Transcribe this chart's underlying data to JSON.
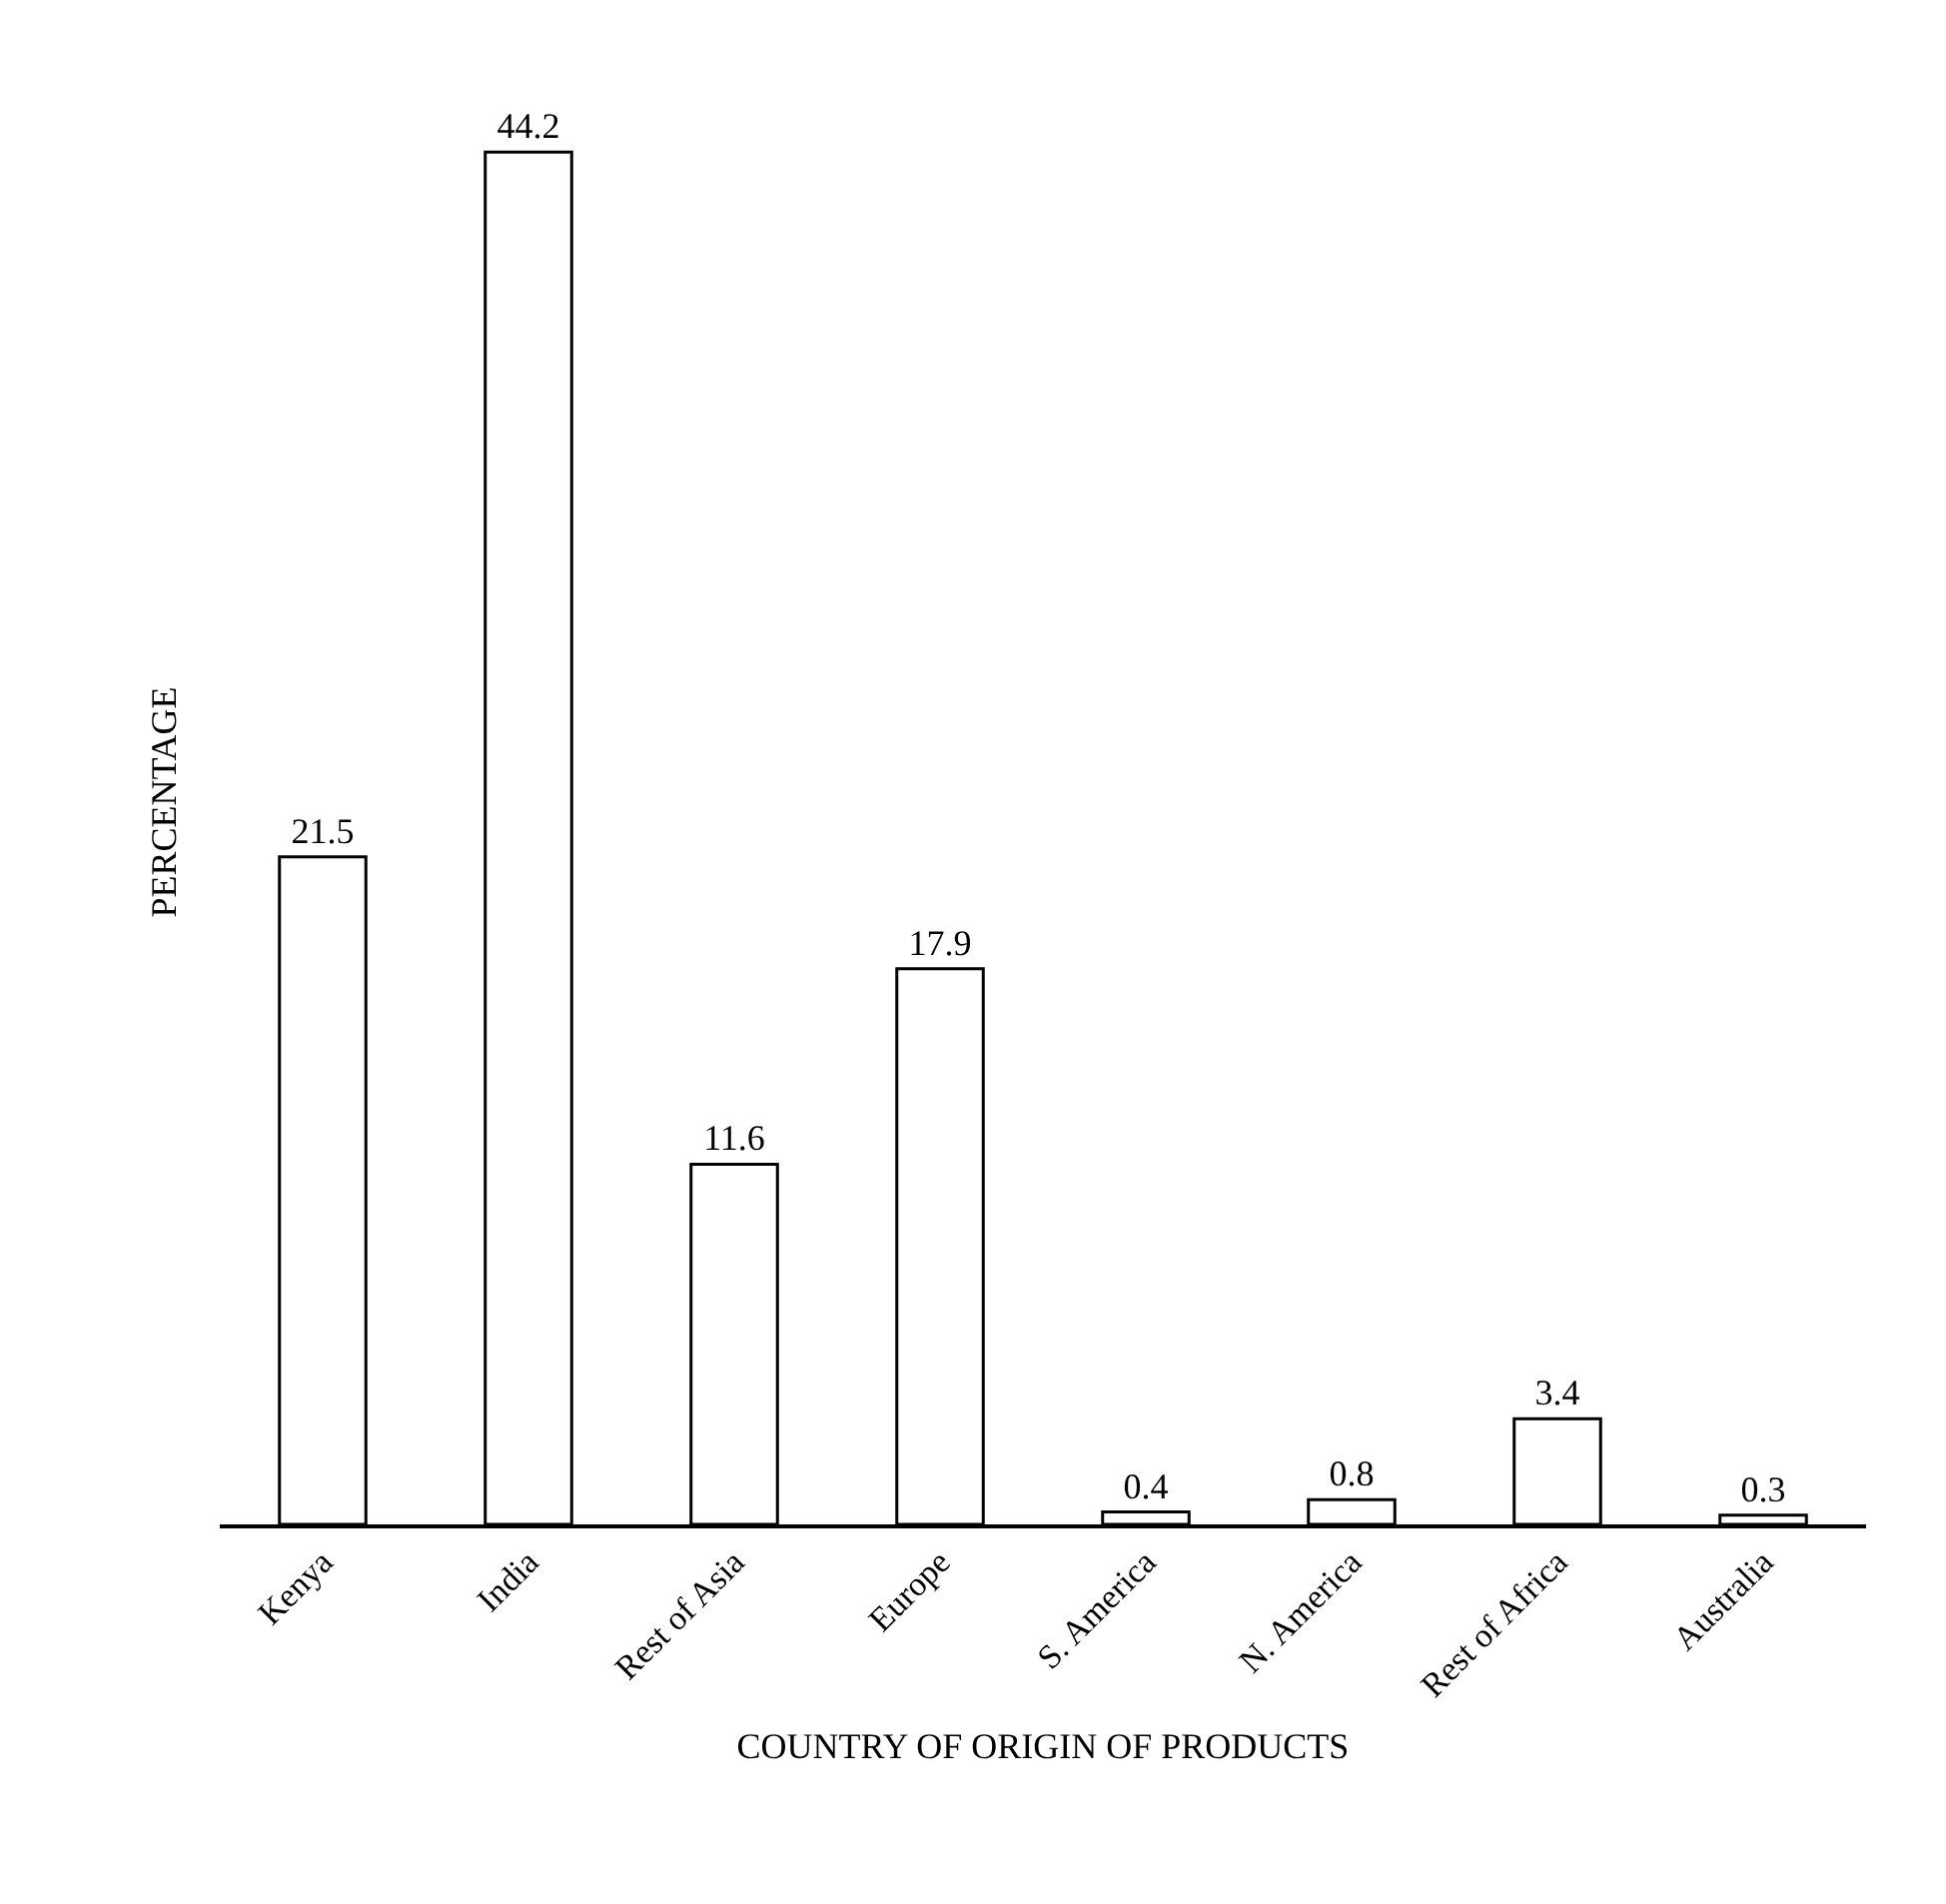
{
  "chart_data": {
    "type": "bar",
    "xlabel": "COUNTRY OF ORIGIN OF PRODUCTS",
    "ylabel": "PERCENTAGE",
    "categories": [
      "Kenya",
      "India",
      "Rest of Asia",
      "Europe",
      "S. America",
      "N. America",
      "Rest of Africa",
      "Australia"
    ],
    "values": [
      21.5,
      44.2,
      11.6,
      17.9,
      0.4,
      0.8,
      3.4,
      0.3
    ],
    "color": "#ffffff",
    "data_labels": true,
    "tick_labels": "x"
  }
}
